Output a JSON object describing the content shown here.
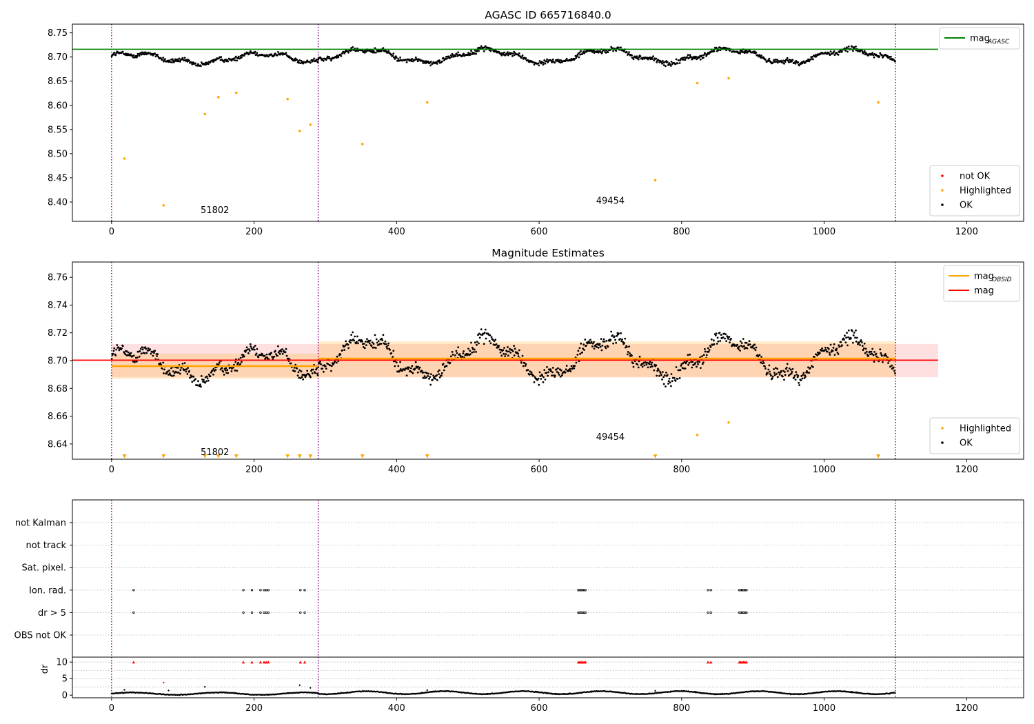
{
  "chart_data": [
    {
      "id": "agasc",
      "type": "scatter",
      "title": "AGASC ID 665716840.0",
      "xlim": [
        -55,
        1280
      ],
      "ylim": [
        8.36,
        8.768
      ],
      "xticks": [
        0,
        200,
        400,
        600,
        800,
        1000,
        1200
      ],
      "yticks": [
        8.4,
        8.45,
        8.5,
        8.55,
        8.6,
        8.65,
        8.7,
        8.75
      ],
      "ytick_decimals": 2,
      "obs_boundaries": [
        0,
        290,
        1100
      ],
      "obs_labels": [
        {
          "text": "51802",
          "x": 145,
          "y": 8.383
        },
        {
          "text": "49454",
          "x": 700,
          "y": 8.402
        }
      ],
      "hlines": [
        {
          "name": "mag",
          "name_sub": "AGASC",
          "y": 8.716,
          "x": [
            -55,
            1160
          ],
          "color": "#008000"
        }
      ],
      "legends": [
        {
          "position": "top-right",
          "entries": [
            {
              "kind": "line",
              "label": "mag",
              "sub": "AGASC",
              "color": "#008000"
            }
          ]
        },
        {
          "position": "bottom-right",
          "entries": [
            {
              "kind": "dot",
              "label": "not OK",
              "color": "#ff0000"
            },
            {
              "kind": "dot",
              "label": "Highlighted",
              "color": "#ffa500"
            },
            {
              "kind": "dot",
              "label": "OK",
              "color": "#000000"
            }
          ]
        }
      ],
      "series": [
        {
          "label": "OK",
          "color": "#000000",
          "generated": {
            "x_range": [
              0,
              1100
            ],
            "step": 0.95,
            "segments": [
              {
                "x": [
                  0,
                  290
                ],
                "base": 8.697,
                "amp": 0.01,
                "period": 180,
                "phase": 0.5,
                "noise": 0.006
              },
              {
                "x": [
                  290,
                  1100
                ],
                "base": 8.702,
                "amp": 0.013,
                "period": 170,
                "phase": 1.0,
                "noise": 0.006
              }
            ]
          }
        },
        {
          "label": "Highlighted",
          "color": "#ffa500",
          "points": [
            [
              18,
              8.49
            ],
            [
              73,
              8.393
            ],
            [
              131,
              8.582
            ],
            [
              150,
              8.617
            ],
            [
              175,
              8.626
            ],
            [
              247,
              8.613
            ],
            [
              264,
              8.547
            ],
            [
              279,
              8.56
            ],
            [
              352,
              8.52
            ],
            [
              443,
              8.606
            ],
            [
              763,
              8.445
            ],
            [
              822,
              8.646
            ],
            [
              866,
              8.656
            ],
            [
              1076,
              8.606
            ]
          ]
        }
      ]
    },
    {
      "id": "estimates",
      "type": "scatter",
      "title": "Magnitude Estimates",
      "xlim": [
        -55,
        1280
      ],
      "ylim": [
        8.629,
        8.771
      ],
      "xticks": [
        0,
        200,
        400,
        600,
        800,
        1000,
        1200
      ],
      "yticks": [
        8.64,
        8.66,
        8.68,
        8.7,
        8.72,
        8.74,
        8.76
      ],
      "ytick_decimals": 2,
      "obs_boundaries": [
        0,
        290,
        1100
      ],
      "obs_labels": [
        {
          "text": "51802",
          "x": 145,
          "y": 8.634
        },
        {
          "text": "49454",
          "x": 700,
          "y": 8.645
        }
      ],
      "bands": [
        {
          "name": "mag",
          "y": [
            8.688,
            8.712
          ],
          "x": [
            0,
            1160
          ],
          "color": "#ff0000",
          "opacity": 0.12
        },
        {
          "name": "mag_OBSID 51802",
          "y": [
            8.687,
            8.705
          ],
          "x": [
            0,
            290
          ],
          "color": "#ffa500",
          "opacity": 0.2
        },
        {
          "name": "mag_OBSID 49454",
          "y": [
            8.688,
            8.714
          ],
          "x": [
            290,
            1100
          ],
          "color": "#ffa500",
          "opacity": 0.2
        }
      ],
      "hlines": [
        {
          "name": "mag",
          "name_sub": "OBSID",
          "y": 8.696,
          "x": [
            0,
            290
          ],
          "color": "#ffa500",
          "width": 2.5
        },
        {
          "name": "mag",
          "name_sub": "OBSID",
          "y": 8.7015,
          "x": [
            290,
            1100
          ],
          "color": "#ffa500",
          "width": 2.5
        },
        {
          "name": "mag",
          "y": 8.7003,
          "x": [
            -55,
            1160
          ],
          "color": "#ff0000",
          "width": 1.8
        }
      ],
      "markers": {
        "y": 8.631,
        "color": "#ffa500",
        "x": [
          18,
          73,
          131,
          150,
          175,
          247,
          264,
          279,
          352,
          443,
          763,
          1076
        ]
      },
      "legends": [
        {
          "position": "top-right",
          "entries": [
            {
              "kind": "line",
              "label": "mag",
              "sub": "OBSID",
              "color": "#ffa500"
            },
            {
              "kind": "line",
              "label": "mag",
              "color": "#ff0000"
            }
          ]
        },
        {
          "position": "bottom-right",
          "entries": [
            {
              "kind": "dot",
              "label": "Highlighted",
              "color": "#ffa500"
            },
            {
              "kind": "dot",
              "label": "OK",
              "color": "#000000"
            }
          ]
        }
      ],
      "series": [
        {
          "label": "OK",
          "color": "#000000",
          "generated": {
            "x_range": [
              0,
              1100
            ],
            "step": 0.95,
            "segments": [
              {
                "x": [
                  0,
                  290
                ],
                "base": 8.697,
                "amp": 0.01,
                "period": 180,
                "phase": 0.5,
                "noise": 0.006
              },
              {
                "x": [
                  290,
                  1100
                ],
                "base": 8.702,
                "amp": 0.013,
                "period": 170,
                "phase": 1.0,
                "noise": 0.006
              }
            ]
          }
        },
        {
          "label": "Highlighted",
          "color": "#ffa500",
          "points": [
            [
              822,
              8.6465
            ],
            [
              866,
              8.6555
            ]
          ]
        }
      ]
    },
    {
      "id": "flags",
      "type": "scatter",
      "xlim": [
        -55,
        1280
      ],
      "xticks": [
        0,
        200,
        400,
        600,
        800,
        1000,
        1200
      ],
      "obs_boundaries": [
        0,
        290,
        1100
      ],
      "flag_rows": [
        "not Kalman",
        "not track",
        "Sat. pixel.",
        "Ion. rad.",
        "dr > 5",
        "OBS not OK"
      ],
      "flag_points": {
        "Ion. rad.": [
          31,
          185,
          197,
          209,
          214,
          217,
          220,
          265,
          271,
          655,
          657,
          659,
          661,
          663,
          665,
          837,
          841,
          881,
          883,
          885,
          887,
          889,
          891
        ],
        "dr > 5": [
          31,
          185,
          197,
          209,
          214,
          217,
          220,
          265,
          271,
          655,
          657,
          659,
          661,
          663,
          665,
          837,
          841,
          881,
          883,
          885,
          887,
          889,
          891
        ]
      },
      "dr": {
        "ylim": [
          -0.8,
          11.5
        ],
        "yticks": [
          0,
          5,
          10
        ],
        "ylabel": "dr",
        "clip": 10,
        "ok_color": "#000000",
        "notok_color": "#ff0000",
        "high_points": [
          31,
          185,
          197,
          209,
          214,
          217,
          220,
          265,
          271,
          655,
          657,
          659,
          661,
          663,
          665,
          837,
          841,
          881,
          883,
          885,
          887,
          889,
          891
        ],
        "mid_points": [
          [
            18,
            1.6
          ],
          [
            73,
            3.8
          ],
          [
            80,
            1.4
          ],
          [
            131,
            2.5
          ],
          [
            264,
            3.0
          ],
          [
            279,
            2.2
          ],
          [
            443,
            1.5
          ],
          [
            763,
            1.3
          ]
        ],
        "generated": {
          "segments": [
            {
              "x": [
                0,
                290
              ],
              "base": 0.45,
              "amp": 0.35,
              "period": 120
            },
            {
              "x": [
                290,
                1100
              ],
              "base": 0.75,
              "amp": 0.45,
              "period": 110
            }
          ]
        }
      }
    }
  ]
}
